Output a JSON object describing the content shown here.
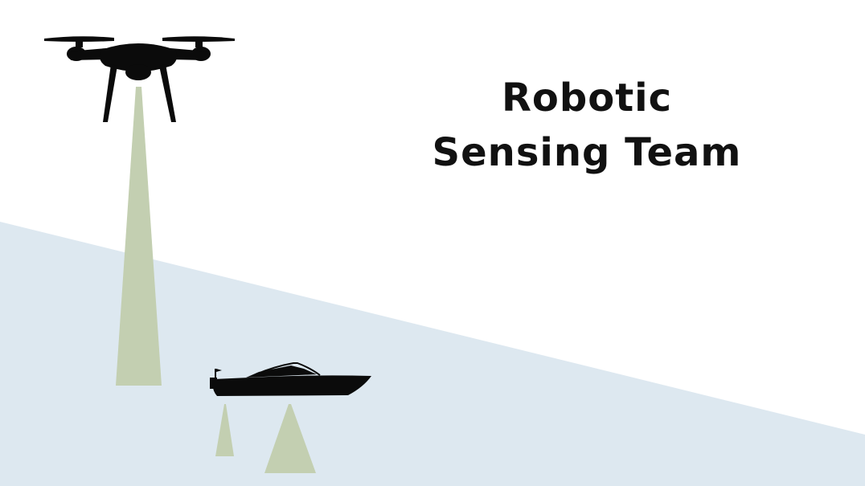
{
  "title": {
    "line1": "Robotic",
    "line2": "Sensing Team"
  },
  "colors": {
    "background": "#ffffff",
    "water": "#dde8f0",
    "sensor_beam": "#c3cfb1",
    "silhouette": "#0b0b0b",
    "text": "#111111"
  },
  "icons": {
    "aerial": "drone-icon",
    "surface": "boat-icon"
  }
}
